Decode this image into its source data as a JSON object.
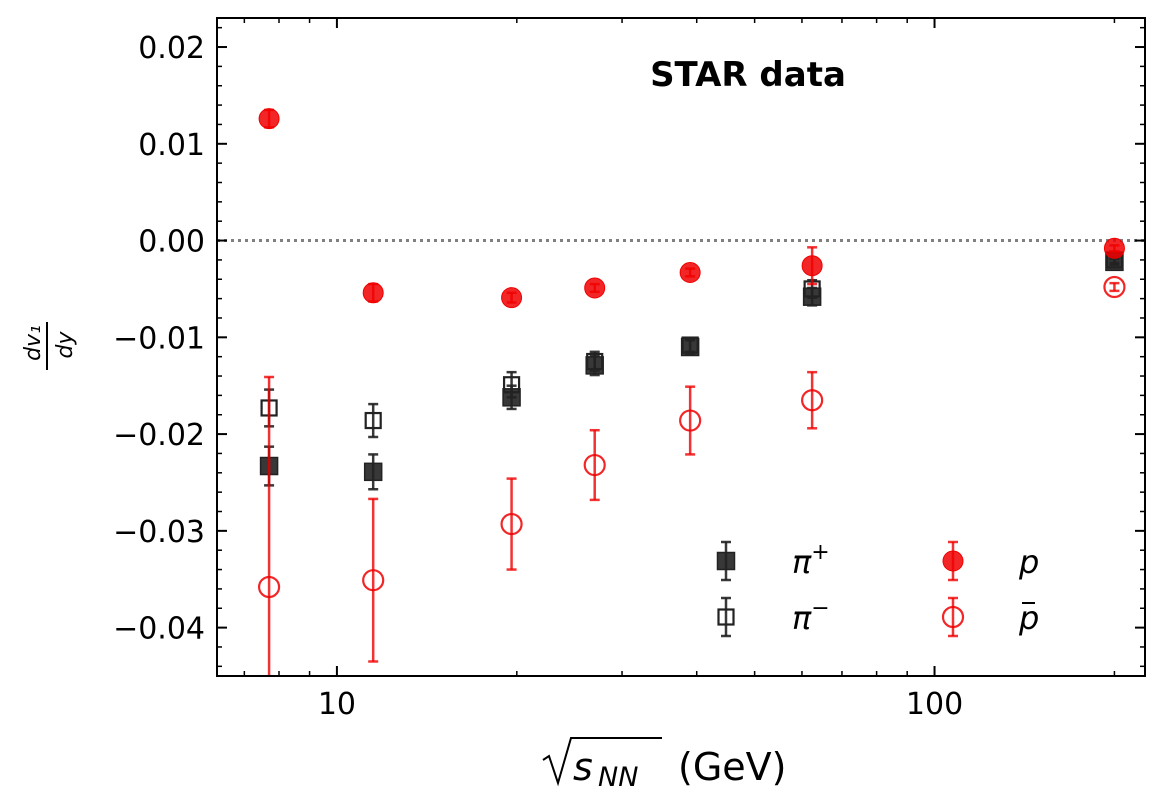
{
  "chart_data": {
    "type": "scatter",
    "title": "STAR data",
    "xlabel": "√s_NN (GeV)",
    "xlabel_main": "(GeV)",
    "xlabel_var": "s",
    "xlabel_sub": "NN",
    "ylabel_num": "dv₁",
    "ylabel_den": "dy",
    "xscale": "log",
    "xlim": [
      6.3,
      225
    ],
    "ylim": [
      -0.045,
      0.023
    ],
    "x_ticks": [
      {
        "value": 10,
        "label": "10"
      },
      {
        "value": 100,
        "label": "100"
      }
    ],
    "y_ticks": [
      {
        "value": 0.02,
        "label": "0.02"
      },
      {
        "value": 0.01,
        "label": "0.01"
      },
      {
        "value": 0.0,
        "label": "0.00"
      },
      {
        "value": -0.01,
        "label": "−0.01"
      },
      {
        "value": -0.02,
        "label": "−0.02"
      },
      {
        "value": -0.03,
        "label": "−0.03"
      },
      {
        "value": -0.04,
        "label": "−0.04"
      }
    ],
    "reference_line_y": 0.0,
    "legend_position": "lower-right",
    "legend_columns": 2,
    "series": [
      {
        "name": "π⁺",
        "sym": "π",
        "sup": "+",
        "marker": "square-filled",
        "color": "#222222",
        "points": [
          {
            "x": 7.7,
            "y": -0.0233,
            "err": 0.002
          },
          {
            "x": 11.5,
            "y": -0.0239,
            "err": 0.0018
          },
          {
            "x": 19.6,
            "y": -0.0162,
            "err": 0.0012
          },
          {
            "x": 27,
            "y": -0.0129,
            "err": 0.001
          },
          {
            "x": 39,
            "y": -0.011,
            "err": 0.0007
          },
          {
            "x": 62.4,
            "y": -0.0058,
            "err": 0.0009
          },
          {
            "x": 200,
            "y": -0.0022,
            "err": 0.0003
          }
        ]
      },
      {
        "name": "π⁻",
        "sym": "π",
        "sup": "−",
        "marker": "square-open",
        "color": "#222222",
        "points": [
          {
            "x": 7.7,
            "y": -0.0173,
            "err": 0.0019
          },
          {
            "x": 11.5,
            "y": -0.0186,
            "err": 0.0017
          },
          {
            "x": 19.6,
            "y": -0.0149,
            "err": 0.0013
          },
          {
            "x": 27,
            "y": -0.0125,
            "err": 0.001
          },
          {
            "x": 39,
            "y": -0.0108,
            "err": 0.0007
          },
          {
            "x": 62.4,
            "y": -0.005,
            "err": 0.0009
          },
          {
            "x": 200,
            "y": -0.002,
            "err": 0.0003
          }
        ]
      },
      {
        "name": "p",
        "sym": "p",
        "sup": "",
        "marker": "circle-filled",
        "color": "#f00000",
        "points": [
          {
            "x": 7.7,
            "y": 0.0126,
            "err": 0.0009
          },
          {
            "x": 11.5,
            "y": -0.0054,
            "err": 0.0009
          },
          {
            "x": 19.6,
            "y": -0.0059,
            "err": 0.0005
          },
          {
            "x": 27,
            "y": -0.0049,
            "err": 0.0004
          },
          {
            "x": 39,
            "y": -0.0033,
            "err": 0.0004
          },
          {
            "x": 62.4,
            "y": -0.0026,
            "err": 0.0019
          },
          {
            "x": 200,
            "y": -0.0008,
            "err": 0.0003
          }
        ]
      },
      {
        "name": "p̄",
        "sym": "p",
        "sup": "",
        "marker": "circle-open",
        "color": "#f00000",
        "points": [
          {
            "x": 7.7,
            "y": -0.0358,
            "err": 0.0217
          },
          {
            "x": 11.5,
            "y": -0.0351,
            "err": 0.0084
          },
          {
            "x": 19.6,
            "y": -0.0293,
            "err": 0.0047
          },
          {
            "x": 27,
            "y": -0.0232,
            "err": 0.0036
          },
          {
            "x": 39,
            "y": -0.0186,
            "err": 0.0035
          },
          {
            "x": 62.4,
            "y": -0.0165,
            "err": 0.0029
          },
          {
            "x": 200,
            "y": -0.0048,
            "err": 0.0004
          }
        ]
      }
    ]
  }
}
